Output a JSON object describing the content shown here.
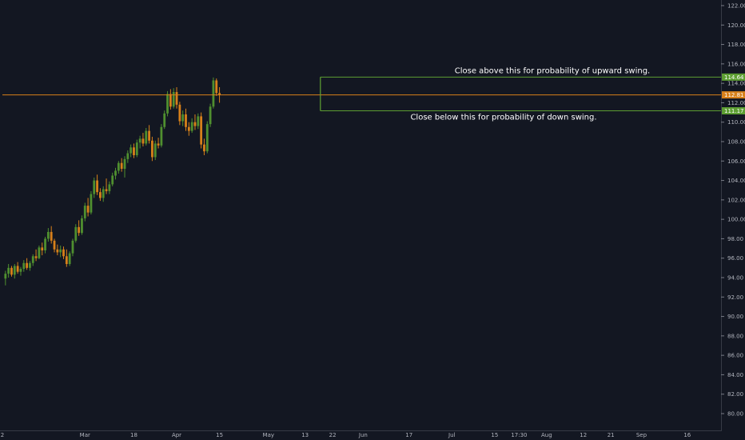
{
  "chart_data": {
    "type": "candlestick",
    "title": "",
    "xlabel": "",
    "ylabel": "",
    "ylim": [
      79,
      123
    ],
    "grid": false,
    "y_ticks": [
      80,
      82,
      84,
      86,
      88,
      90,
      92,
      94,
      96,
      98,
      100,
      102,
      104,
      106,
      108,
      110,
      112,
      114,
      116,
      118,
      120,
      122
    ],
    "y_tick_labels": [
      "80.00",
      "82.00",
      "84.00",
      "86.00",
      "88.00",
      "90.00",
      "92.00",
      "94.00",
      "96.00",
      "98.00",
      "100.00",
      "102.00",
      "104.00",
      "106.00",
      "108.00",
      "110.00",
      "112.00",
      "114.00",
      "116.00",
      "118.00",
      "120.00",
      "122.00"
    ],
    "x_tick_labels": [
      {
        "day": 0,
        "label": "2"
      },
      {
        "day": 27,
        "label": "Mar"
      },
      {
        "day": 43,
        "label": "18"
      },
      {
        "day": 57,
        "label": "Apr"
      },
      {
        "day": 71,
        "label": "15"
      },
      {
        "day": 87,
        "label": "May"
      },
      {
        "day": 99,
        "label": "13"
      },
      {
        "day": 108,
        "label": "22"
      },
      {
        "day": 118,
        "label": "Jun"
      },
      {
        "day": 133,
        "label": "17"
      },
      {
        "day": 147,
        "label": "Jul"
      },
      {
        "day": 161,
        "label": "15"
      },
      {
        "day": 169,
        "label": "17:30"
      },
      {
        "day": 178,
        "label": "Aug"
      },
      {
        "day": 190,
        "label": "12"
      },
      {
        "day": 199,
        "label": "21"
      },
      {
        "day": 209,
        "label": "Sep"
      },
      {
        "day": 224,
        "label": "16"
      }
    ],
    "up_color": "#4f8f2f",
    "down_color": "#d7801a",
    "levels": [
      {
        "value": 114.64,
        "label": "114.64",
        "color": "#5d9e32",
        "start_day": 104,
        "annotation": "Close above this for probability of upward swing."
      },
      {
        "value": 112.81,
        "label": "112.81",
        "color": "#d7801a",
        "start_day": 0,
        "annotation": ""
      },
      {
        "value": 111.17,
        "label": "111.17",
        "color": "#5d9e32",
        "start_day": 104,
        "annotation": "Close below this for probability of down swing."
      }
    ],
    "candles": [
      [
        1,
        93.9,
        94.7,
        93.2,
        94.4
      ],
      [
        2,
        94.4,
        95.4,
        94.0,
        95.0
      ],
      [
        3,
        95.0,
        95.2,
        94.1,
        94.3
      ],
      [
        4,
        94.3,
        95.4,
        93.9,
        95.2
      ],
      [
        5,
        95.2,
        95.6,
        94.4,
        94.6
      ],
      [
        6,
        94.6,
        95.1,
        94.2,
        94.9
      ],
      [
        7,
        94.9,
        95.8,
        94.6,
        95.5
      ],
      [
        8,
        95.5,
        96.0,
        94.8,
        95.0
      ],
      [
        9,
        95.0,
        95.7,
        94.7,
        95.5
      ],
      [
        10,
        95.5,
        96.4,
        95.2,
        96.2
      ],
      [
        11,
        96.2,
        96.9,
        95.7,
        96.0
      ],
      [
        12,
        96.0,
        97.3,
        95.9,
        97.1
      ],
      [
        13,
        97.1,
        97.6,
        96.3,
        96.8
      ],
      [
        14,
        96.8,
        98.2,
        96.5,
        98.0
      ],
      [
        15,
        98.0,
        99.1,
        97.7,
        98.7
      ],
      [
        16,
        98.7,
        99.3,
        97.5,
        97.8
      ],
      [
        17,
        97.8,
        98.0,
        96.6,
        96.9
      ],
      [
        18,
        96.9,
        97.4,
        96.3,
        96.6
      ],
      [
        19,
        96.6,
        97.3,
        96.1,
        96.9
      ],
      [
        20,
        96.9,
        97.2,
        95.9,
        96.2
      ],
      [
        21,
        96.2,
        96.9,
        95.1,
        95.4
      ],
      [
        22,
        95.4,
        96.7,
        95.2,
        96.5
      ],
      [
        23,
        96.5,
        98.0,
        96.2,
        97.8
      ],
      [
        24,
        97.8,
        99.5,
        97.6,
        99.2
      ],
      [
        25,
        99.2,
        99.9,
        98.3,
        98.6
      ],
      [
        26,
        98.6,
        100.4,
        98.4,
        100.1
      ],
      [
        27,
        100.1,
        101.7,
        99.8,
        101.4
      ],
      [
        28,
        101.4,
        102.2,
        100.3,
        100.7
      ],
      [
        29,
        100.7,
        102.9,
        100.5,
        102.6
      ],
      [
        30,
        102.6,
        104.3,
        102.2,
        104.0
      ],
      [
        31,
        104.0,
        104.6,
        102.5,
        102.8
      ],
      [
        32,
        102.8,
        103.2,
        101.9,
        102.2
      ],
      [
        33,
        102.2,
        103.4,
        101.8,
        103.1
      ],
      [
        34,
        103.1,
        104.2,
        102.6,
        102.9
      ],
      [
        35,
        102.9,
        103.9,
        102.6,
        103.6
      ],
      [
        36,
        103.6,
        104.8,
        103.4,
        104.5
      ],
      [
        37,
        104.5,
        105.3,
        104.1,
        105.0
      ],
      [
        38,
        105.0,
        106.0,
        104.7,
        105.8
      ],
      [
        39,
        105.8,
        106.3,
        104.9,
        105.2
      ],
      [
        40,
        105.2,
        106.5,
        104.3,
        106.2
      ],
      [
        41,
        106.2,
        107.1,
        105.8,
        106.8
      ],
      [
        42,
        106.8,
        107.7,
        106.4,
        107.4
      ],
      [
        43,
        107.4,
        107.8,
        106.3,
        106.6
      ],
      [
        44,
        106.6,
        108.2,
        106.4,
        107.9
      ],
      [
        45,
        107.9,
        108.6,
        107.3,
        108.3
      ],
      [
        46,
        108.3,
        108.9,
        107.5,
        107.8
      ],
      [
        47,
        107.8,
        109.4,
        107.6,
        109.1
      ],
      [
        48,
        109.1,
        109.7,
        107.8,
        108.1
      ],
      [
        49,
        108.1,
        108.5,
        106.0,
        106.4
      ],
      [
        50,
        106.4,
        108.1,
        106.1,
        107.8
      ],
      [
        51,
        107.8,
        108.4,
        107.3,
        107.6
      ],
      [
        52,
        107.6,
        109.8,
        107.4,
        109.5
      ],
      [
        53,
        109.5,
        111.2,
        109.3,
        110.9
      ],
      [
        54,
        110.9,
        113.2,
        110.6,
        112.9
      ],
      [
        55,
        112.9,
        113.4,
        111.3,
        111.6
      ],
      [
        56,
        111.6,
        113.5,
        111.4,
        113.1
      ],
      [
        57,
        113.1,
        113.6,
        111.4,
        111.8
      ],
      [
        58,
        111.8,
        112.1,
        109.7,
        110.1
      ],
      [
        59,
        110.1,
        111.2,
        109.6,
        110.8
      ],
      [
        60,
        110.8,
        111.4,
        109.1,
        109.5
      ],
      [
        61,
        109.5,
        110.0,
        108.6,
        109.1
      ],
      [
        62,
        109.1,
        110.4,
        108.9,
        110.0
      ],
      [
        63,
        110.0,
        110.8,
        109.2,
        109.6
      ],
      [
        64,
        109.6,
        110.9,
        109.3,
        110.6
      ],
      [
        65,
        110.6,
        111.0,
        107.3,
        107.7
      ],
      [
        66,
        107.7,
        108.3,
        106.6,
        107.0
      ],
      [
        67,
        107.0,
        110.1,
        106.8,
        109.8
      ],
      [
        68,
        109.8,
        111.9,
        109.5,
        111.6
      ],
      [
        69,
        111.6,
        114.6,
        111.4,
        114.3
      ],
      [
        70,
        114.3,
        114.5,
        112.7,
        113.0
      ],
      [
        71,
        113.0,
        113.6,
        112.0,
        112.81
      ]
    ]
  }
}
